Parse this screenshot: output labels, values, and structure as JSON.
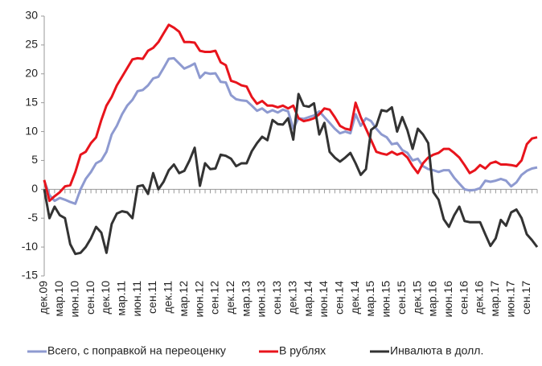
{
  "chart_data": {
    "type": "line",
    "categories": [
      "дек.09",
      null,
      null,
      "мар.10",
      null,
      null,
      "июн.10",
      null,
      null,
      "сен.10",
      null,
      null,
      "дек.10",
      null,
      null,
      "мар.11",
      null,
      null,
      "июн.11",
      null,
      null,
      "сен.11",
      null,
      null,
      "дек.11",
      null,
      null,
      "мар.12",
      null,
      null,
      "июн.12",
      null,
      null,
      "сен.12",
      null,
      null,
      "дек.12",
      null,
      null,
      "мар.13",
      null,
      null,
      "июн.13",
      null,
      null,
      "сен.13",
      null,
      null,
      "дек.13",
      null,
      null,
      "мар.14",
      null,
      null,
      "июн.14",
      null,
      null,
      "сен.14",
      null,
      null,
      "дек.14",
      null,
      null,
      "мар.15",
      null,
      null,
      "июн.15",
      null,
      null,
      "сен.15",
      null,
      null,
      "дек.15",
      null,
      null,
      "мар.16",
      null,
      null,
      "июн.16",
      null,
      null,
      "сен.16",
      null,
      null,
      "дек.16",
      null,
      null,
      "мар.17",
      null,
      null,
      "июн.17",
      null,
      null,
      "сен.17",
      null,
      null
    ],
    "series": [
      {
        "name": "Всего, с поправкой на переоценку",
        "color": "#8e9ad0",
        "values": [
          1.5,
          -1,
          -2,
          -1.5,
          -1.8,
          -2.2,
          -2.5,
          0,
          1.8,
          3,
          4.5,
          5,
          6.5,
          9.5,
          11,
          13,
          14.5,
          15.5,
          17,
          17.2,
          18,
          19.2,
          19.5,
          21,
          22.6,
          22.7,
          21.8,
          20.9,
          21.3,
          21.8,
          19.3,
          20.2,
          20,
          20.1,
          18.6,
          18.5,
          16.3,
          15.6,
          15.4,
          15.3,
          14.5,
          13.6,
          14,
          13.3,
          13.7,
          13.3,
          13.8,
          13.5,
          10.5,
          12.3,
          12.2,
          12.5,
          12.8,
          13.5,
          12.5,
          11.5,
          10.5,
          9.7,
          10,
          9.7,
          13,
          11,
          12.3,
          11.8,
          10.5,
          9.5,
          9,
          7.8,
          8,
          6.8,
          6.3,
          5,
          5.3,
          4,
          3.5,
          3.3,
          3,
          3.3,
          3.3,
          2,
          1,
          0,
          -0.2,
          -0.1,
          0.2,
          1.5,
          1.3,
          1.5,
          1.8,
          1.5,
          0.5,
          1.2,
          2.5,
          3.2,
          3.6,
          3.8
        ]
      },
      {
        "name": "В рублях",
        "color": "#e8141c",
        "values": [
          1.6,
          -2,
          -1.2,
          -0.5,
          0.5,
          0.7,
          3,
          6,
          6.5,
          8,
          9,
          12,
          14.5,
          16,
          18,
          19.5,
          21,
          22.5,
          22.7,
          22.6,
          24,
          24.5,
          25.5,
          27,
          28.5,
          28,
          27.3,
          25.5,
          25.5,
          25.4,
          24,
          23.8,
          23.8,
          24,
          22,
          21.5,
          18.8,
          18.5,
          18,
          17.8,
          16,
          14.8,
          15.3,
          14.5,
          14.5,
          14.2,
          14.5,
          14,
          14.5,
          12.3,
          11.8,
          12,
          12.3,
          13,
          14,
          13.8,
          12.5,
          11,
          10.5,
          10.3,
          15,
          12.5,
          10.5,
          8.5,
          6.5,
          6.2,
          6,
          6.5,
          6,
          6.3,
          5.5,
          4,
          2.8,
          4.5,
          5.5,
          6,
          6.3,
          7,
          7,
          6.3,
          5.5,
          4.2,
          2.8,
          3.3,
          4.2,
          3.6,
          4.5,
          4.8,
          4.3,
          4.3,
          4.2,
          4,
          5,
          7.8,
          8.8,
          9
        ]
      },
      {
        "name": "Инвалюта в долл.",
        "color": "#333333",
        "values": [
          0,
          -5,
          -3,
          -4.5,
          -5,
          -9.5,
          -11.2,
          -11,
          -10,
          -8.5,
          -6.5,
          -7.5,
          -11,
          -6,
          -4.2,
          -3.8,
          -4,
          -5,
          0.5,
          0.7,
          -0.8,
          2.8,
          0,
          1.3,
          3.3,
          4.3,
          2.8,
          3.2,
          5,
          7.2,
          0.6,
          4.5,
          3.5,
          3.6,
          6,
          5.8,
          5.3,
          4,
          4.5,
          4.5,
          6.6,
          8,
          9.1,
          8.5,
          12,
          11.3,
          11.2,
          12.3,
          8.6,
          16.5,
          14.5,
          14.3,
          14.9,
          9.5,
          11.5,
          6.5,
          5.5,
          4.8,
          5.5,
          6.3,
          4.5,
          2.5,
          3.5,
          10.3,
          11,
          13.7,
          13.5,
          14.2,
          10,
          12.5,
          10.2,
          7,
          10.5,
          9.5,
          8,
          -0.5,
          -1.8,
          -5.2,
          -6.5,
          -4.5,
          -3,
          -5.5,
          -5.7,
          -5.7,
          -5.7,
          -7.8,
          -9.8,
          -8.5,
          -5.3,
          -6.3,
          -4,
          -3.5,
          -5,
          -7.8,
          -8.8,
          -10
        ]
      }
    ],
    "ylim": [
      -15,
      30
    ],
    "yticks": [
      -15,
      -10,
      -5,
      0,
      5,
      10,
      15,
      20,
      25,
      30
    ],
    "grid": false,
    "legend": "bottom"
  }
}
